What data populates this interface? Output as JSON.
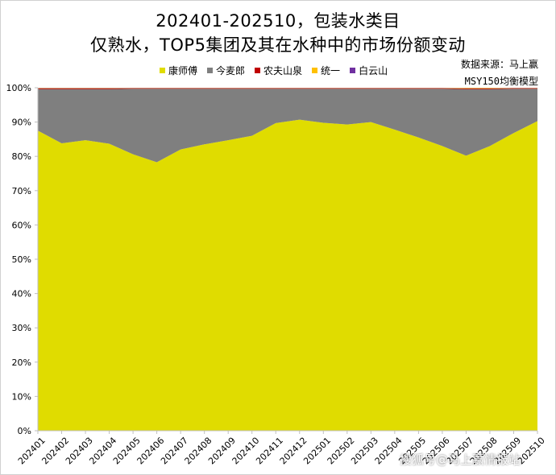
{
  "title_line1": "202401-202510，包装水类目",
  "title_line2": "仅熟水，TOP5集团及其在水种中的市场份额变动",
  "source_line1": "数据来源：马上赢",
  "source_line2": "MSY150均衡模型",
  "watermark": "搜狐号@马上赢情报站",
  "chart_data": {
    "type": "area",
    "stacked": true,
    "x": [
      "202401",
      "202402",
      "202403",
      "202404",
      "202405",
      "202406",
      "202407",
      "202408",
      "202409",
      "202410",
      "202411",
      "202412",
      "202501",
      "202502",
      "202503",
      "202504",
      "202505",
      "202506",
      "202507",
      "202508",
      "202509",
      "202510"
    ],
    "ylim": [
      0,
      100
    ],
    "yticks": [
      "0%",
      "10%",
      "20%",
      "30%",
      "40%",
      "50%",
      "60%",
      "70%",
      "80%",
      "90%",
      "100%"
    ],
    "grid": false,
    "legend_position": "top",
    "series": [
      {
        "name": "康师傅",
        "color": "#e0dc00",
        "values": [
          87.5,
          83.8,
          84.7,
          83.7,
          80.6,
          78.3,
          82.0,
          83.5,
          84.7,
          86.0,
          89.7,
          90.7,
          89.8,
          89.3,
          90.0,
          87.8,
          85.5,
          83.0,
          80.2,
          83.0,
          86.8,
          90.3
        ]
      },
      {
        "name": "今麦郎",
        "color": "#7f7f7f",
        "values": [
          12.1,
          15.8,
          14.9,
          15.9,
          19.1,
          21.4,
          17.7,
          16.2,
          15.0,
          13.7,
          10.0,
          9.0,
          9.9,
          10.4,
          9.7,
          11.9,
          14.2,
          16.7,
          19.4,
          16.6,
          12.9,
          9.4
        ]
      },
      {
        "name": "农夫山泉",
        "color": "#c00000",
        "values": [
          0.2,
          0.2,
          0.2,
          0.2,
          0.15,
          0.15,
          0.15,
          0.15,
          0.15,
          0.15,
          0.15,
          0.15,
          0.15,
          0.15,
          0.15,
          0.15,
          0.15,
          0.15,
          0.15,
          0.15,
          0.15,
          0.15
        ]
      },
      {
        "name": "统一",
        "color": "#ffc000",
        "values": [
          0.1,
          0.1,
          0.1,
          0.1,
          0.1,
          0.1,
          0.1,
          0.1,
          0.1,
          0.1,
          0.1,
          0.1,
          0.1,
          0.1,
          0.1,
          0.1,
          0.1,
          0.1,
          0.2,
          0.2,
          0.1,
          0.1
        ]
      },
      {
        "name": "白云山",
        "color": "#7030a0",
        "values": [
          0.1,
          0.1,
          0.1,
          0.1,
          0.05,
          0.05,
          0.05,
          0.05,
          0.05,
          0.05,
          0.05,
          0.05,
          0.05,
          0.05,
          0.05,
          0.05,
          0.05,
          0.05,
          0.05,
          0.05,
          0.05,
          0.05
        ]
      }
    ]
  }
}
